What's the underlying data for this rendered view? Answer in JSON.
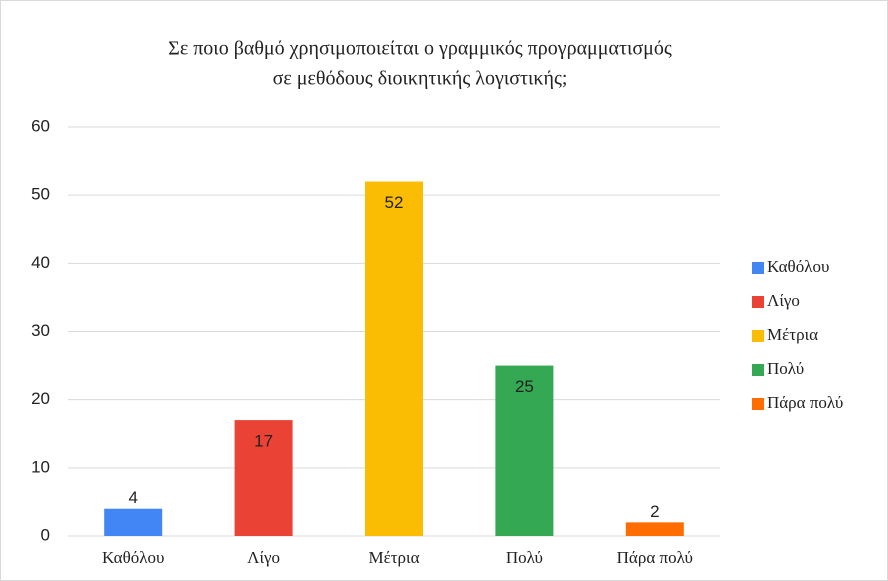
{
  "chart_data": {
    "type": "bar",
    "title": [
      "Σε ποιο βαθμό χρησιμοποιείται ο γραμμικός προγραμματισμός",
      "σε μεθόδους διοικητικής λογιστικής;"
    ],
    "categories": [
      "Καθόλου",
      "Λίγο",
      "Μέτρια",
      "Πολύ",
      "Πάρα πολύ"
    ],
    "values": [
      4,
      17,
      52,
      25,
      2
    ],
    "colors": [
      "#4285f4",
      "#ea4335",
      "#fbbc04",
      "#34a853",
      "#ff6d01"
    ],
    "ylim": [
      0,
      60
    ],
    "yticks": [
      0,
      10,
      20,
      30,
      40,
      50,
      60
    ],
    "grid": true,
    "legend": "right"
  }
}
